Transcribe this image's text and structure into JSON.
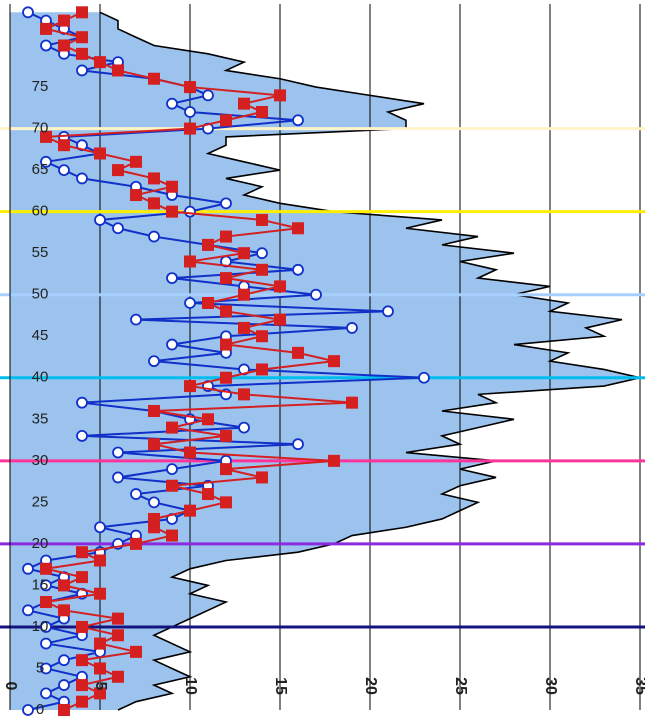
{
  "chart_data": {
    "type": "area",
    "orientation": "horizontal",
    "x": [
      0,
      1,
      2,
      3,
      4,
      5,
      6,
      7,
      8,
      9,
      10,
      11,
      12,
      13,
      14,
      15,
      16,
      17,
      18,
      19,
      20,
      21,
      22,
      23,
      24,
      25,
      26,
      27,
      28,
      29,
      30,
      31,
      32,
      33,
      34,
      35,
      36,
      37,
      38,
      39,
      40,
      41,
      42,
      43,
      44,
      45,
      46,
      47,
      48,
      49,
      50,
      51,
      52,
      53,
      54,
      55,
      56,
      57,
      58,
      59,
      60,
      61,
      62,
      63,
      64,
      65,
      66,
      67,
      68,
      69,
      70,
      71,
      72,
      73,
      74,
      75,
      76,
      77,
      78,
      79,
      80,
      81,
      82,
      83,
      84
    ],
    "series": [
      {
        "type": "area",
        "color": "#9cc3ee",
        "values": [
          6,
          7,
          9,
          8,
          10,
          9,
          8,
          10,
          9,
          8,
          9,
          10,
          11,
          12,
          10,
          11,
          9,
          10,
          12,
          16,
          18,
          19,
          22,
          24,
          25,
          26,
          24,
          25,
          27,
          25,
          27,
          22,
          25,
          24,
          26,
          28,
          24,
          27,
          26,
          33,
          35,
          33,
          30,
          31,
          28,
          33,
          32,
          34,
          30,
          31,
          28,
          30,
          26,
          27,
          25,
          28,
          24,
          26,
          22,
          24,
          18,
          15,
          13,
          14,
          12,
          15,
          13,
          11,
          12,
          12,
          22,
          22,
          21,
          23,
          20,
          17,
          15,
          12,
          13,
          11,
          8,
          7,
          6,
          6,
          5
        ]
      },
      {
        "type": "line",
        "marker": "circle",
        "color": "#1030c8",
        "values": [
          1,
          3,
          2,
          3,
          4,
          2,
          3,
          5,
          2,
          4,
          2,
          3,
          1,
          2,
          4,
          2,
          3,
          1,
          2,
          5,
          6,
          7,
          5,
          9,
          10,
          8,
          7,
          11,
          6,
          9,
          12,
          6,
          16,
          4,
          13,
          10,
          8,
          4,
          12,
          11,
          23,
          13,
          8,
          12,
          9,
          12,
          19,
          7,
          21,
          10,
          17,
          13,
          9,
          16,
          12,
          14,
          11,
          8,
          6,
          5,
          10,
          12,
          9,
          7,
          4,
          3,
          2,
          5,
          4,
          3,
          11,
          16,
          10,
          9,
          11,
          10,
          8,
          4,
          6,
          3,
          2,
          4,
          3,
          2,
          1
        ]
      },
      {
        "type": "line",
        "marker": "square",
        "color": "#d42020",
        "values": [
          3,
          4,
          5,
          4,
          6,
          5,
          4,
          7,
          5,
          6,
          4,
          6,
          3,
          2,
          5,
          3,
          4,
          2,
          5,
          4,
          7,
          9,
          8,
          8,
          10,
          12,
          11,
          9,
          14,
          12,
          18,
          10,
          8,
          12,
          9,
          11,
          8,
          19,
          13,
          10,
          12,
          14,
          18,
          16,
          12,
          14,
          13,
          15,
          12,
          11,
          13,
          15,
          12,
          14,
          10,
          13,
          11,
          12,
          16,
          14,
          9,
          8,
          7,
          9,
          8,
          6,
          7,
          5,
          3,
          2,
          10,
          12,
          14,
          13,
          15,
          10,
          8,
          6,
          5,
          4,
          3,
          4,
          2,
          3,
          4
        ]
      }
    ],
    "reference_lines": [
      {
        "value": 10,
        "color": "#141480"
      },
      {
        "value": 20,
        "color": "#8a2be2"
      },
      {
        "value": 30,
        "color": "#ff3399"
      },
      {
        "value": 40,
        "color": "#00bfef"
      },
      {
        "value": 50,
        "color": "#a8d0ff"
      },
      {
        "value": 60,
        "color": "#ffee00"
      },
      {
        "value": 70,
        "color": "#fff3c8"
      }
    ],
    "xlim": [
      0,
      85
    ],
    "xticks": [
      0,
      5,
      10,
      15,
      20,
      25,
      30,
      35,
      40,
      45,
      50,
      55,
      60,
      65,
      70,
      75
    ],
    "ylim": [
      0,
      35
    ],
    "yticks": [
      0,
      5,
      10,
      15,
      20,
      25,
      30,
      35
    ],
    "grid": true
  }
}
